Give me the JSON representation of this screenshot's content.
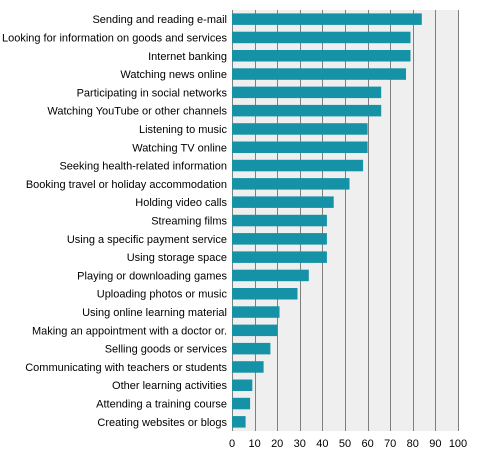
{
  "chart_data": {
    "type": "bar",
    "orientation": "horizontal",
    "title": "",
    "xlabel": "",
    "ylabel": "",
    "xlim": [
      0,
      100
    ],
    "xticks": [
      0,
      10,
      20,
      30,
      40,
      50,
      60,
      70,
      80,
      90,
      100
    ],
    "grid": true,
    "legend": "none",
    "colors": {
      "bar": "#1592a6",
      "plot_bg": "#efefef",
      "grid": "#7f7f7f"
    },
    "categories": [
      "Sending and reading e-mail",
      "Looking for information on goods and services",
      "Internet banking",
      "Watching news online",
      "Participating in social networks",
      "Watching YouTube or other channels",
      "Listening to music",
      "Watching TV online",
      "Seeking health-related information",
      "Booking travel or holiday accommodation",
      "Holding video calls",
      "Streaming films",
      "Using a specific payment service",
      "Using storage space",
      "Playing or downloading games",
      "Uploading photos or music",
      "Using online learning material",
      "Making an appointment with a doctor or.",
      "Selling goods or services",
      "Communicating with teachers or students",
      "Other learning activities",
      "Attending a training course",
      "Creating websites or blogs"
    ],
    "values": [
      84,
      79,
      79,
      77,
      66,
      66,
      60,
      60,
      58,
      52,
      45,
      42,
      42,
      42,
      34,
      29,
      21,
      20,
      17,
      14,
      9,
      8,
      6
    ]
  }
}
